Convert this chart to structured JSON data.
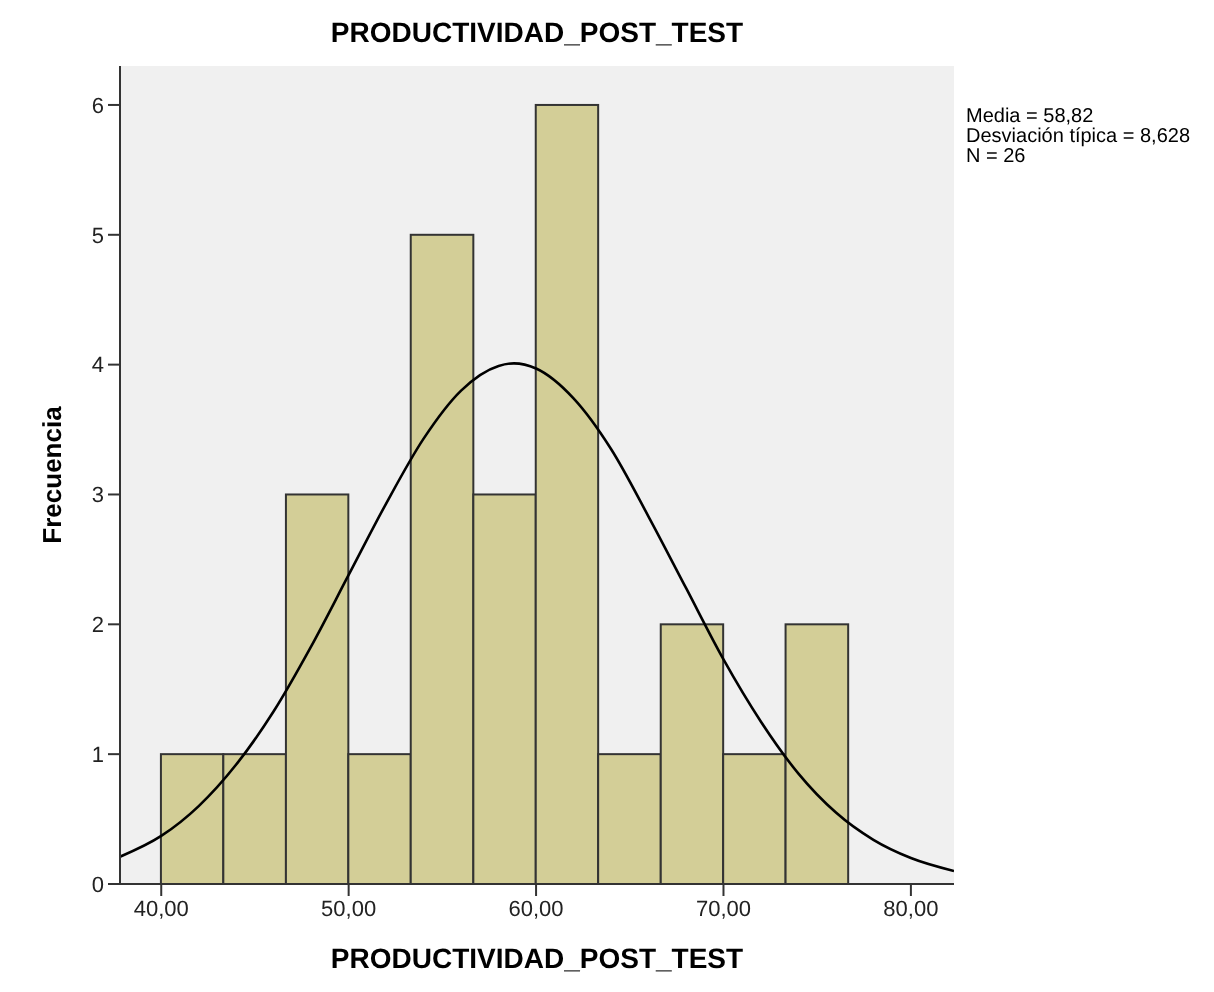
{
  "chart_data": {
    "type": "histogram",
    "title": "PRODUCTIVIDAD_POST_TEST",
    "xlabel": "PRODUCTIVIDAD_POST_TEST",
    "ylabel": "Frecuencia",
    "annotations": [
      "Media = 58,82",
      "Desviación típica = 8,628",
      "N = 26"
    ],
    "series": [
      {
        "color": "#d3ce97",
        "bins": [
          40,
          43.33,
          46.67,
          50,
          53.33,
          56.67,
          60,
          63.33,
          66.67,
          70,
          73.33,
          76.67
        ],
        "values": [
          1,
          1,
          3,
          1,
          5,
          3,
          6,
          1,
          2,
          1,
          2
        ]
      },
      {
        "type": "line",
        "color": "#000000",
        "x": [
          37.8,
          40,
          42,
          44,
          46,
          48,
          50,
          52,
          54,
          56,
          58,
          58.82,
          60,
          62,
          64,
          66,
          68,
          70,
          72,
          74,
          76,
          78,
          80,
          82.3
        ],
        "values": [
          0.21,
          0.37,
          0.6,
          0.92,
          1.33,
          1.83,
          2.38,
          2.93,
          3.43,
          3.8,
          3.99,
          4.01,
          3.97,
          3.74,
          3.35,
          2.83,
          2.28,
          1.73,
          1.25,
          0.85,
          0.55,
          0.34,
          0.2,
          0.1
        ]
      }
    ],
    "xlim": [
      37.8,
      82.3
    ],
    "xticks": [
      {
        "value": 40,
        "label": "40,00"
      },
      {
        "value": 50,
        "label": "50,00"
      },
      {
        "value": 60,
        "label": "60,00"
      },
      {
        "value": 70,
        "label": "70,00"
      },
      {
        "value": 80,
        "label": "80,00"
      }
    ],
    "ylim": [
      0,
      6.3
    ],
    "yticks": [
      0,
      1,
      2,
      3,
      4,
      5,
      6
    ],
    "grid": false,
    "legend": false,
    "marker": "none"
  }
}
